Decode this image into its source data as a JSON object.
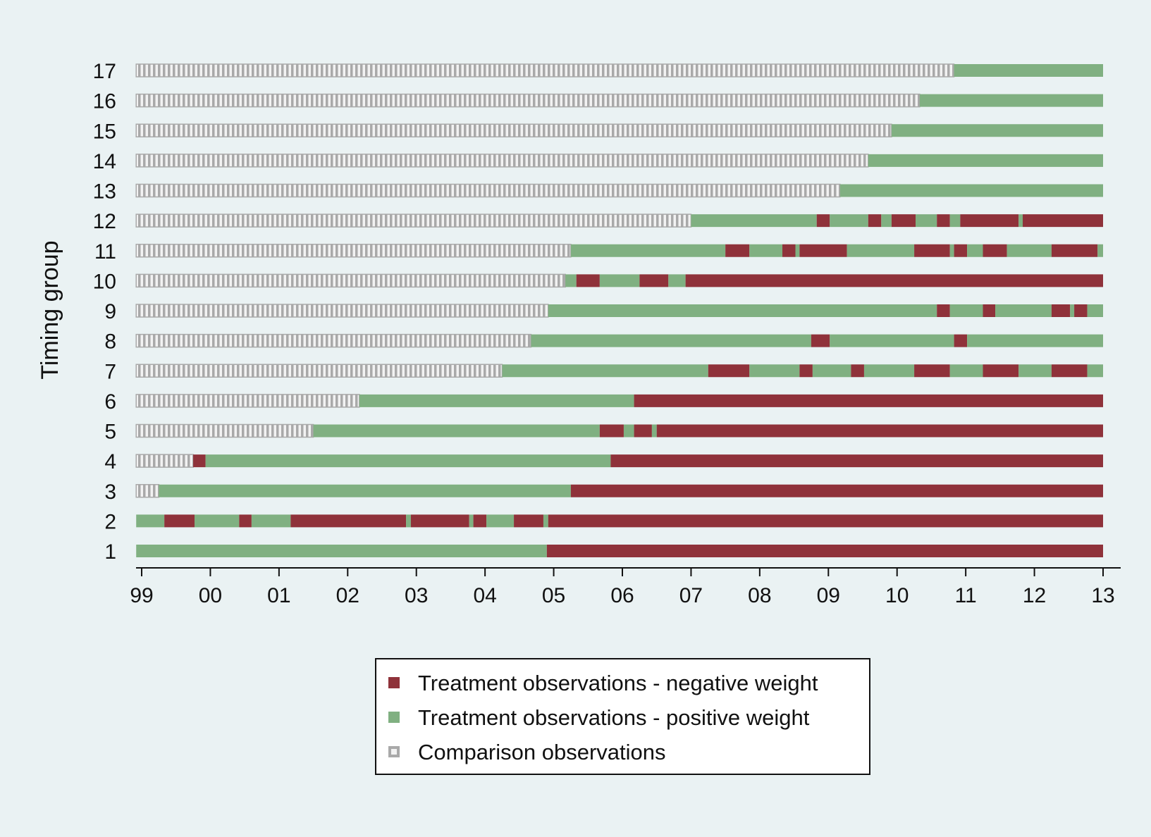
{
  "chart_data": {
    "type": "bar",
    "orientation": "horizontal",
    "ylabel": "Timing group",
    "xlabel": "",
    "title": "",
    "xlim": [
      1999,
      2013
    ],
    "x_ticks": [
      1999,
      2000,
      2001,
      2002,
      2003,
      2004,
      2005,
      2006,
      2007,
      2008,
      2009,
      2010,
      2011,
      2012,
      2013
    ],
    "x_tick_labels": [
      "99",
      "00",
      "01",
      "02",
      "03",
      "04",
      "05",
      "06",
      "07",
      "08",
      "09",
      "10",
      "11",
      "12",
      "13"
    ],
    "grid": false,
    "legend_position": "bottom",
    "colors": {
      "neg": "#8f323a",
      "pos": "#80b081",
      "cmp": "#a9a9a9",
      "cmp_inner": "#f2f2f2",
      "background": "#eaf2f3"
    },
    "legend": [
      {
        "key": "neg",
        "label": "Treatment observations - negative weight"
      },
      {
        "key": "pos",
        "label": "Treatment observations - positive weight"
      },
      {
        "key": "cmp",
        "label": "Comparison observations"
      }
    ],
    "groups": [
      {
        "label": "1",
        "segments": [
          [
            "pos",
            1998.92,
            2004.9
          ],
          [
            "neg",
            2004.9,
            2013
          ]
        ]
      },
      {
        "label": "2",
        "segments": [
          [
            "pos",
            1998.92,
            1999.33
          ],
          [
            "neg",
            1999.33,
            1999.77
          ],
          [
            "pos",
            1999.77,
            2000.42
          ],
          [
            "neg",
            2000.42,
            2000.6
          ],
          [
            "pos",
            2000.6,
            2001.17
          ],
          [
            "neg",
            2001.17,
            2002.85
          ],
          [
            "pos",
            2002.85,
            2002.92
          ],
          [
            "neg",
            2002.92,
            2003.77
          ],
          [
            "pos",
            2003.77,
            2003.83
          ],
          [
            "neg",
            2003.83,
            2004.02
          ],
          [
            "pos",
            2004.02,
            2004.42
          ],
          [
            "neg",
            2004.42,
            2004.85
          ],
          [
            "pos",
            2004.85,
            2004.92
          ],
          [
            "neg",
            2004.92,
            2013
          ]
        ]
      },
      {
        "label": "3",
        "segments": [
          [
            "cmp",
            1998.92,
            1999.25
          ],
          [
            "pos",
            1999.25,
            2005.25
          ],
          [
            "neg",
            2005.25,
            2013
          ]
        ]
      },
      {
        "label": "4",
        "segments": [
          [
            "cmp",
            1998.92,
            1999.75
          ],
          [
            "neg",
            1999.75,
            1999.93
          ],
          [
            "pos",
            1999.93,
            2005.83
          ],
          [
            "neg",
            2005.83,
            2013
          ]
        ]
      },
      {
        "label": "5",
        "segments": [
          [
            "cmp",
            1998.92,
            2001.5
          ],
          [
            "pos",
            2001.5,
            2005.67
          ],
          [
            "neg",
            2005.67,
            2006.02
          ],
          [
            "pos",
            2006.02,
            2006.17
          ],
          [
            "neg",
            2006.17,
            2006.43
          ],
          [
            "pos",
            2006.43,
            2006.5
          ],
          [
            "neg",
            2006.5,
            2013
          ]
        ]
      },
      {
        "label": "6",
        "segments": [
          [
            "cmp",
            1998.92,
            2002.17
          ],
          [
            "pos",
            2002.17,
            2006.17
          ],
          [
            "neg",
            2006.17,
            2013
          ]
        ]
      },
      {
        "label": "7",
        "segments": [
          [
            "cmp",
            1998.92,
            2004.25
          ],
          [
            "pos",
            2004.25,
            2007.25
          ],
          [
            "neg",
            2007.25,
            2007.85
          ],
          [
            "pos",
            2007.85,
            2008.58
          ],
          [
            "neg",
            2008.58,
            2008.77
          ],
          [
            "pos",
            2008.77,
            2009.33
          ],
          [
            "neg",
            2009.33,
            2009.52
          ],
          [
            "pos",
            2009.52,
            2010.25
          ],
          [
            "neg",
            2010.25,
            2010.77
          ],
          [
            "pos",
            2010.77,
            2011.25
          ],
          [
            "neg",
            2011.25,
            2011.77
          ],
          [
            "pos",
            2011.77,
            2012.25
          ],
          [
            "neg",
            2012.25,
            2012.77
          ],
          [
            "pos",
            2012.77,
            2013
          ]
        ]
      },
      {
        "label": "8",
        "segments": [
          [
            "cmp",
            1998.92,
            2004.67
          ],
          [
            "pos",
            2004.67,
            2008.75
          ],
          [
            "neg",
            2008.75,
            2009.02
          ],
          [
            "pos",
            2009.02,
            2010.83
          ],
          [
            "neg",
            2010.83,
            2011.02
          ],
          [
            "pos",
            2011.02,
            2013
          ]
        ]
      },
      {
        "label": "9",
        "segments": [
          [
            "cmp",
            1998.92,
            2004.92
          ],
          [
            "pos",
            2004.92,
            2010.58
          ],
          [
            "neg",
            2010.58,
            2010.77
          ],
          [
            "pos",
            2010.77,
            2011.25
          ],
          [
            "neg",
            2011.25,
            2011.43
          ],
          [
            "pos",
            2011.43,
            2012.25
          ],
          [
            "neg",
            2012.25,
            2012.52
          ],
          [
            "pos",
            2012.52,
            2012.58
          ],
          [
            "neg",
            2012.58,
            2012.77
          ],
          [
            "pos",
            2012.77,
            2013
          ]
        ]
      },
      {
        "label": "10",
        "segments": [
          [
            "cmp",
            1998.92,
            2005.17
          ],
          [
            "pos",
            2005.17,
            2005.33
          ],
          [
            "neg",
            2005.33,
            2005.67
          ],
          [
            "pos",
            2005.67,
            2006.25
          ],
          [
            "neg",
            2006.25,
            2006.67
          ],
          [
            "pos",
            2006.67,
            2006.92
          ],
          [
            "neg",
            2006.92,
            2013
          ]
        ]
      },
      {
        "label": "11",
        "segments": [
          [
            "cmp",
            1998.92,
            2005.25
          ],
          [
            "pos",
            2005.25,
            2007.5
          ],
          [
            "neg",
            2007.5,
            2007.85
          ],
          [
            "pos",
            2007.85,
            2008.33
          ],
          [
            "neg",
            2008.33,
            2008.52
          ],
          [
            "pos",
            2008.52,
            2008.58
          ],
          [
            "neg",
            2008.58,
            2009.27
          ],
          [
            "pos",
            2009.27,
            2010.25
          ],
          [
            "neg",
            2010.25,
            2010.77
          ],
          [
            "pos",
            2010.77,
            2010.83
          ],
          [
            "neg",
            2010.83,
            2011.02
          ],
          [
            "pos",
            2011.02,
            2011.25
          ],
          [
            "neg",
            2011.25,
            2011.6
          ],
          [
            "pos",
            2011.6,
            2012.25
          ],
          [
            "neg",
            2012.25,
            2012.92
          ],
          [
            "pos",
            2012.92,
            2013
          ]
        ]
      },
      {
        "label": "12",
        "segments": [
          [
            "cmp",
            1998.92,
            2007.0
          ],
          [
            "pos",
            2007.0,
            2008.83
          ],
          [
            "neg",
            2008.83,
            2009.02
          ],
          [
            "pos",
            2009.02,
            2009.58
          ],
          [
            "neg",
            2009.58,
            2009.77
          ],
          [
            "pos",
            2009.77,
            2009.92
          ],
          [
            "neg",
            2009.92,
            2010.27
          ],
          [
            "pos",
            2010.27,
            2010.58
          ],
          [
            "neg",
            2010.58,
            2010.77
          ],
          [
            "pos",
            2010.77,
            2010.92
          ],
          [
            "neg",
            2010.92,
            2011.77
          ],
          [
            "pos",
            2011.77,
            2011.83
          ],
          [
            "neg",
            2011.83,
            2013
          ]
        ]
      },
      {
        "label": "13",
        "segments": [
          [
            "cmp",
            1998.92,
            2009.17
          ],
          [
            "pos",
            2009.17,
            2013
          ]
        ]
      },
      {
        "label": "14",
        "segments": [
          [
            "cmp",
            1998.92,
            2009.58
          ],
          [
            "pos",
            2009.58,
            2013
          ]
        ]
      },
      {
        "label": "15",
        "segments": [
          [
            "cmp",
            1998.92,
            2009.92
          ],
          [
            "pos",
            2009.92,
            2013
          ]
        ]
      },
      {
        "label": "16",
        "segments": [
          [
            "cmp",
            1998.92,
            2010.33
          ],
          [
            "pos",
            2010.33,
            2013
          ]
        ]
      },
      {
        "label": "17",
        "segments": [
          [
            "cmp",
            1998.92,
            2010.83
          ],
          [
            "pos",
            2010.83,
            2013
          ]
        ]
      }
    ]
  }
}
